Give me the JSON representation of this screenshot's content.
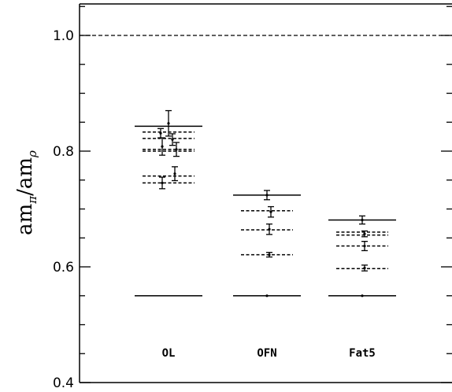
{
  "chart_data": {
    "type": "scatter",
    "ylabel": {
      "base1": "am",
      "sub1": "π",
      "sep": "/am",
      "sub2": "ρ"
    },
    "ylim": [
      0.4,
      1.05
    ],
    "yticks": [
      "0.4",
      "0.6",
      "0.8",
      "1.0"
    ],
    "reference_line": 1.0,
    "categories": [
      {
        "label": "OL",
        "solid_levels": [
          0.843,
          0.55
        ],
        "dashed_levels": [
          0.833,
          0.822,
          0.803,
          0.8,
          0.757,
          0.745
        ],
        "points": [
          {
            "y": 0.848,
            "err": 0.022,
            "dx": 0
          },
          {
            "y": 0.831,
            "err": 0.008,
            "dx": -10
          },
          {
            "y": 0.82,
            "err": 0.01,
            "dx": 5
          },
          {
            "y": 0.808,
            "err": 0.015,
            "dx": -8
          },
          {
            "y": 0.803,
            "err": 0.012,
            "dx": 10
          },
          {
            "y": 0.761,
            "err": 0.012,
            "dx": 8
          },
          {
            "y": 0.745,
            "err": 0.01,
            "dx": -8
          }
        ]
      },
      {
        "label": "OFN",
        "solid_levels": [
          0.724,
          0.55
        ],
        "dashed_levels": [
          0.697,
          0.664,
          0.621
        ],
        "points": [
          {
            "y": 0.724,
            "err": 0.008,
            "dx": 0
          },
          {
            "y": 0.695,
            "err": 0.009,
            "dx": 5
          },
          {
            "y": 0.665,
            "err": 0.009,
            "dx": 3
          },
          {
            "y": 0.621,
            "err": 0.004,
            "dx": 3
          },
          {
            "y": 0.55,
            "err": 0.0,
            "dx": 0
          }
        ]
      },
      {
        "label": "Fat5",
        "solid_levels": [
          0.681,
          0.55
        ],
        "dashed_levels": [
          0.66,
          0.655,
          0.636,
          0.597
        ],
        "points": [
          {
            "y": 0.681,
            "err": 0.007,
            "dx": 0
          },
          {
            "y": 0.657,
            "err": 0.005,
            "dx": 3
          },
          {
            "y": 0.636,
            "err": 0.008,
            "dx": 3
          },
          {
            "y": 0.598,
            "err": 0.005,
            "dx": 3
          },
          {
            "y": 0.55,
            "err": 0.0,
            "dx": 0
          }
        ]
      }
    ]
  }
}
